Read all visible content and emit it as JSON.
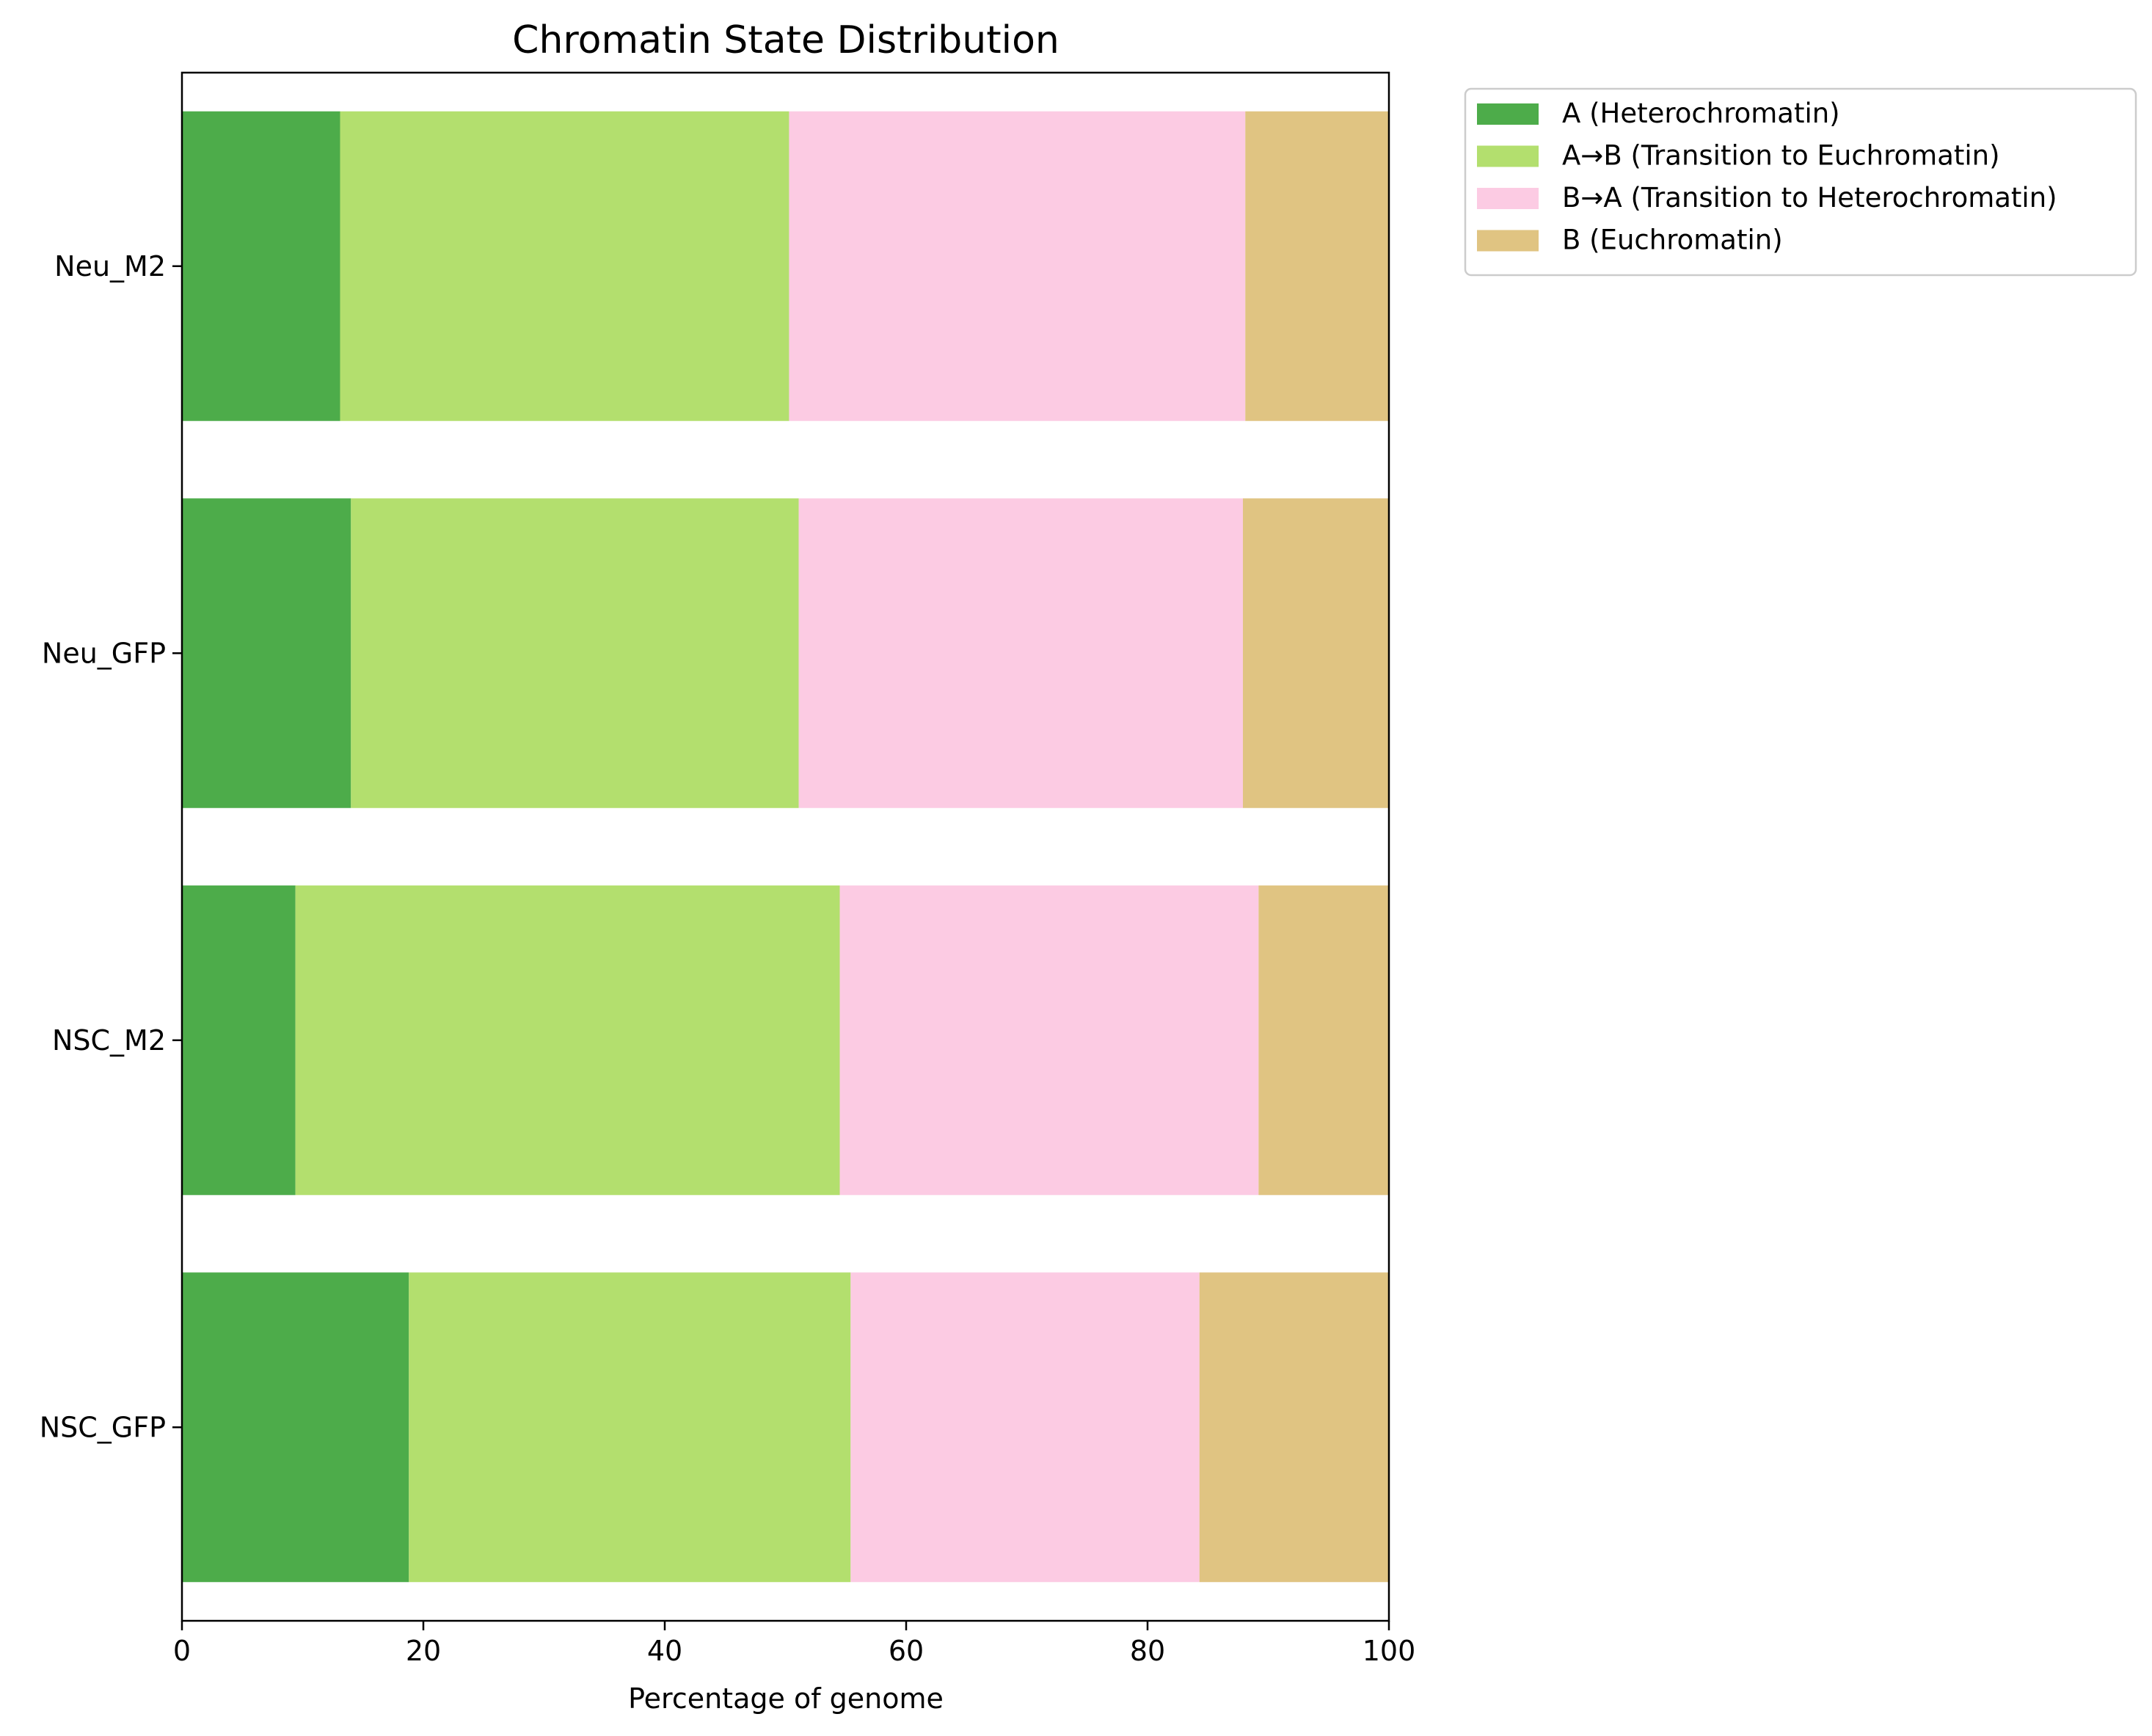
{
  "chart_data": {
    "type": "bar",
    "orientation": "horizontal",
    "stacked": true,
    "title": "Chromatin State Distribution",
    "xlabel": "Percentage of genome",
    "ylabel": "",
    "xlim": [
      0,
      100
    ],
    "xticks": [
      "0",
      "20",
      "40",
      "60",
      "80",
      "100"
    ],
    "grid": false,
    "legend_position": "outside-top-right",
    "categories": [
      "Neu_M2",
      "Neu_GFP",
      "NSC_M2",
      "NSC_GFP"
    ],
    "series": [
      {
        "name": "A (Heterochromatin)",
        "color": "#4dac4a",
        "values": [
          13.1,
          14.0,
          9.4,
          18.8
        ]
      },
      {
        "name": "A→B (Transition to Euchromatin)",
        "color": "#b3df6e",
        "values": [
          37.2,
          37.1,
          45.1,
          36.6
        ]
      },
      {
        "name": "B→A (Transition to Heterochromatin)",
        "color": "#fccbe3",
        "values": [
          37.8,
          36.8,
          34.7,
          28.9
        ]
      },
      {
        "name": "B (Euchromatin)",
        "color": "#e0c482",
        "values": [
          11.9,
          12.1,
          10.8,
          15.7
        ]
      }
    ]
  }
}
